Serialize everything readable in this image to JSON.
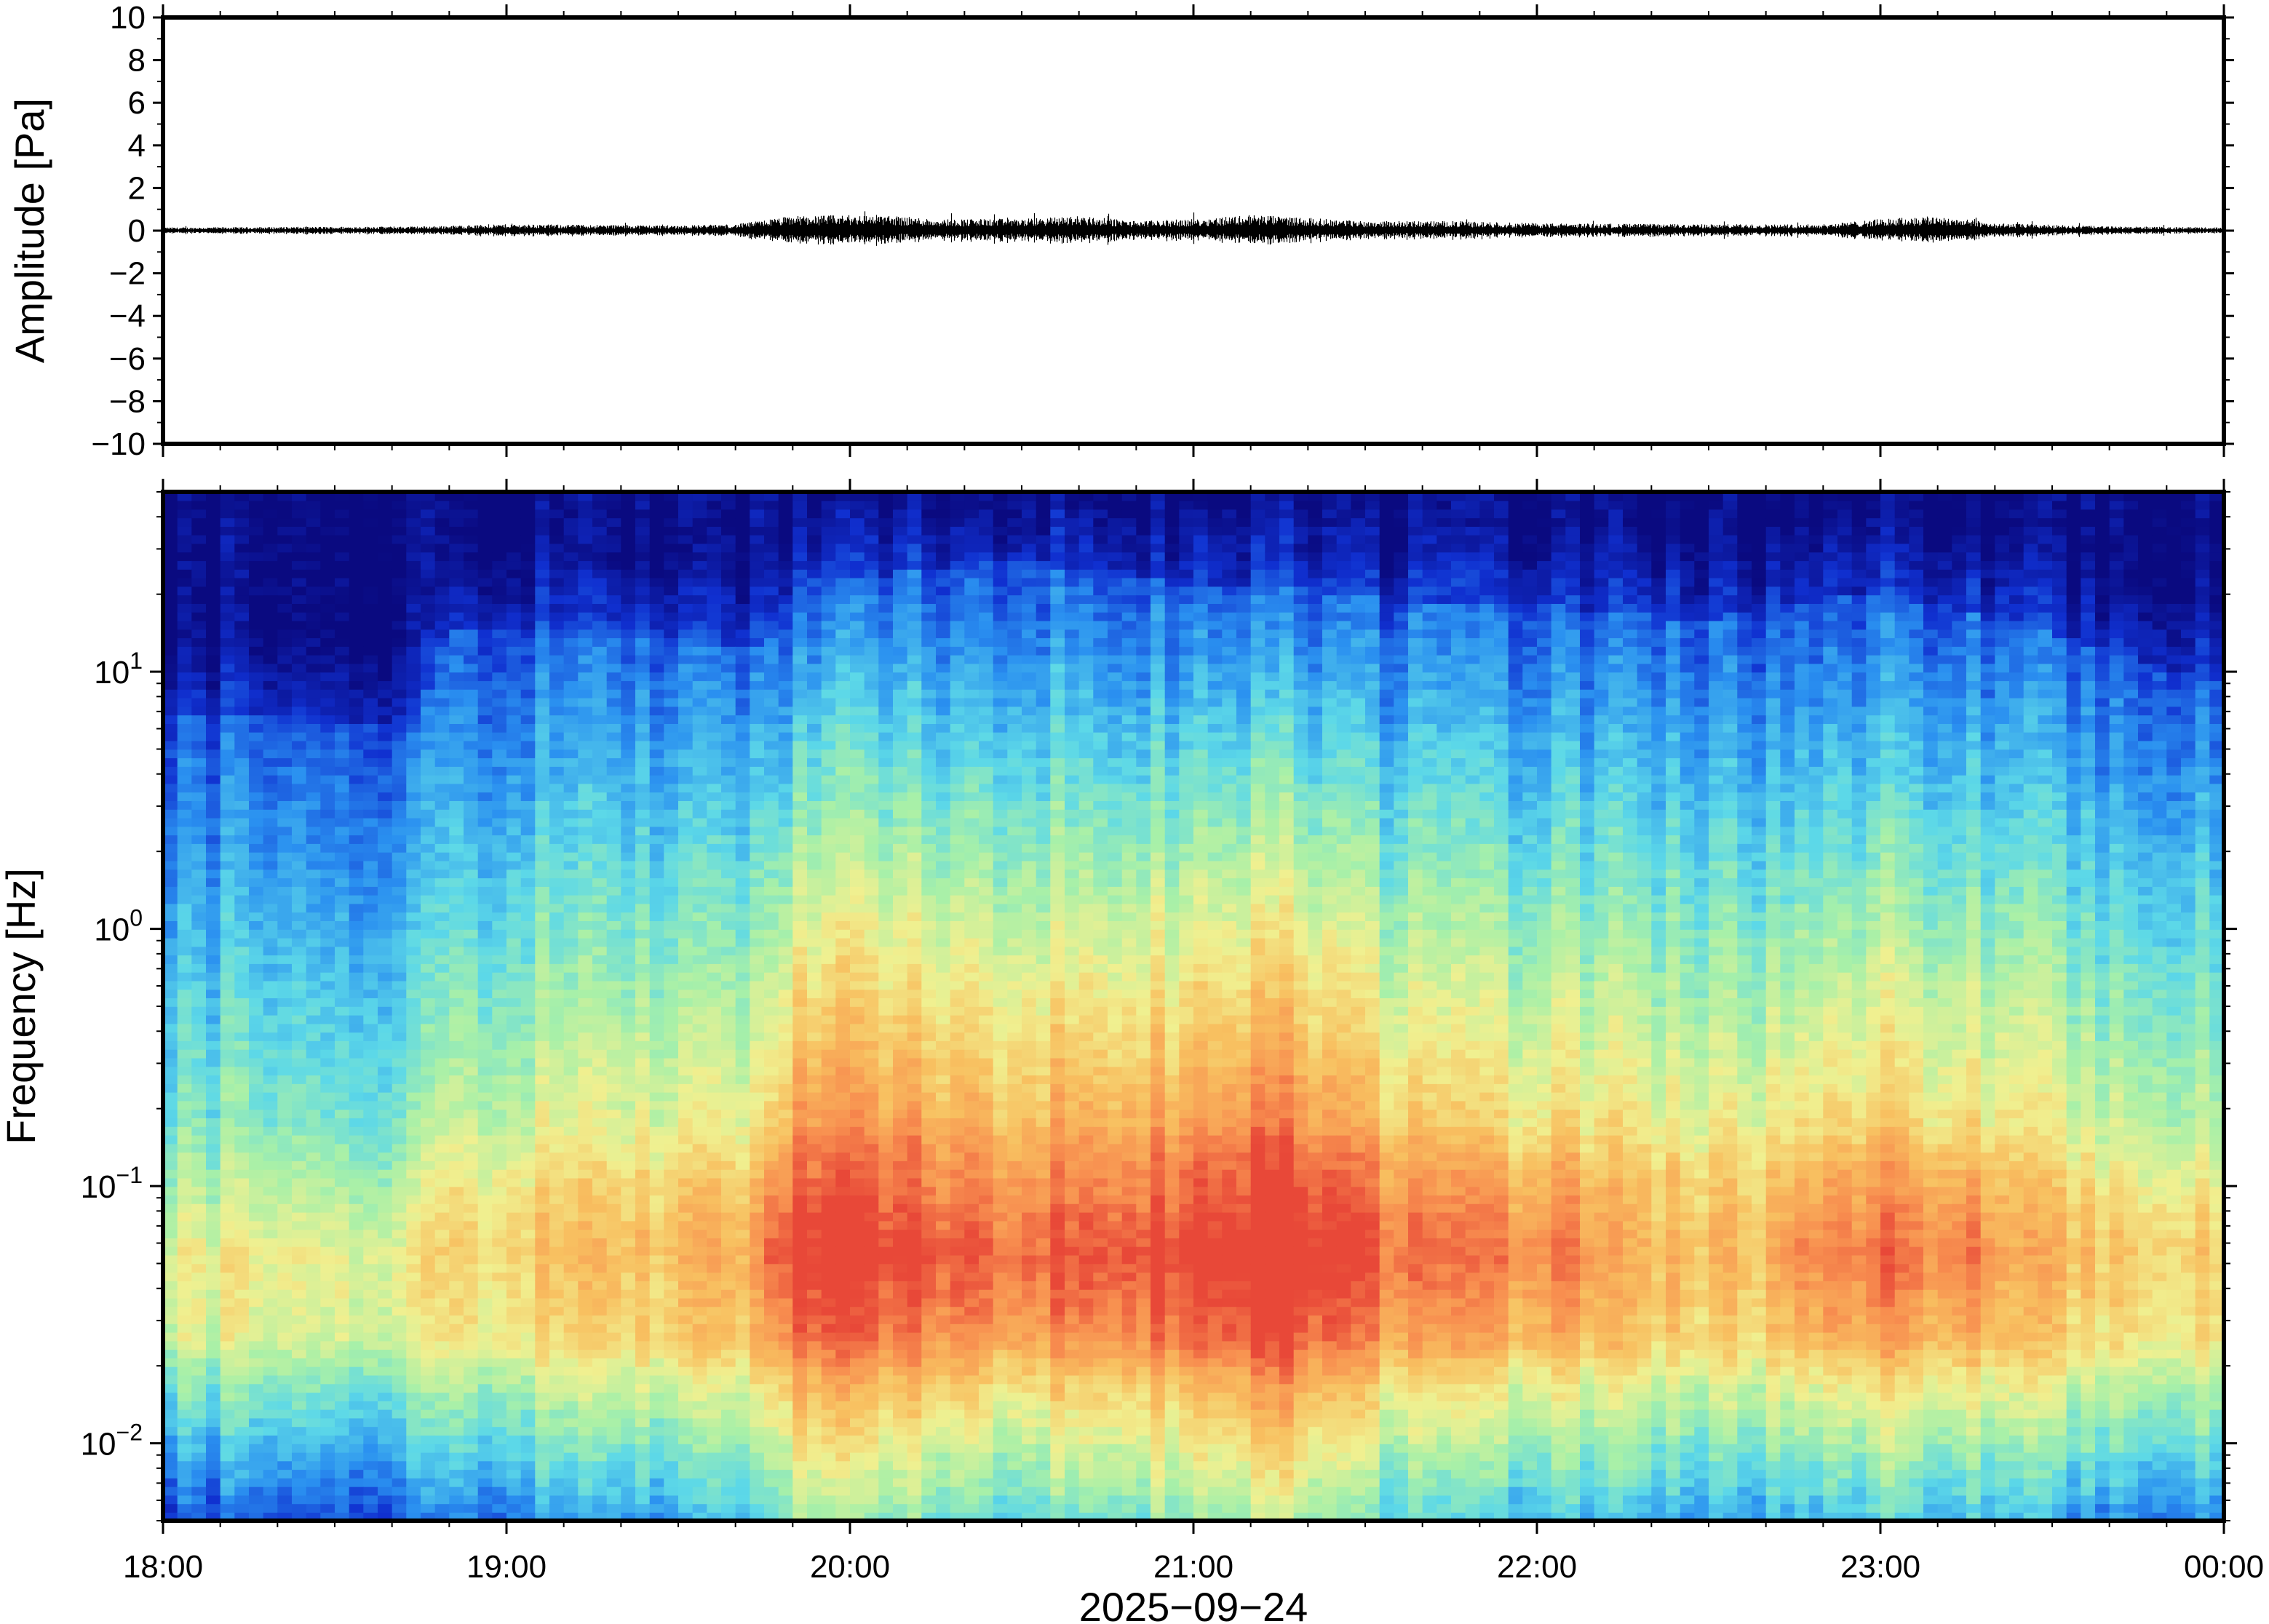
{
  "chart_data": [
    {
      "type": "line",
      "ylabel": "Amplitude [Pa]",
      "ylim": [
        -10,
        10
      ],
      "y_ticks": [
        "10",
        "8",
        "6",
        "4",
        "2",
        "0",
        "−2",
        "−4",
        "−6",
        "−8",
        "−10"
      ],
      "x_range": [
        "18:00",
        "00:00"
      ],
      "series": [
        {
          "type": "waveform",
          "envelope_pa": [
            [
              "18:00",
              0.15
            ],
            [
              "18:45",
              0.2
            ],
            [
              "19:00",
              0.3
            ],
            [
              "19:30",
              0.25
            ],
            [
              "19:40",
              0.3
            ],
            [
              "19:50",
              0.7
            ],
            [
              "20:05",
              0.75
            ],
            [
              "20:15",
              0.55
            ],
            [
              "20:30",
              0.55
            ],
            [
              "20:40",
              0.7
            ],
            [
              "20:50",
              0.45
            ],
            [
              "21:00",
              0.55
            ],
            [
              "21:10",
              0.75
            ],
            [
              "21:30",
              0.45
            ],
            [
              "21:45",
              0.45
            ],
            [
              "22:00",
              0.35
            ],
            [
              "22:30",
              0.3
            ],
            [
              "22:50",
              0.3
            ],
            [
              "23:00",
              0.55
            ],
            [
              "23:10",
              0.7
            ],
            [
              "23:20",
              0.35
            ],
            [
              "23:40",
              0.2
            ],
            [
              "00:00",
              0.15
            ]
          ]
        }
      ],
      "grid": false
    },
    {
      "type": "heatmap",
      "ylabel": "Frequency [Hz]",
      "xlabel": "2025−09−24",
      "y_scale": "log",
      "ylim": [
        0.005,
        50
      ],
      "y_ticks": [
        {
          "base": "10",
          "exp": "1"
        },
        {
          "base": "10",
          "exp": "0"
        },
        {
          "base": "10",
          "exp": "−1"
        },
        {
          "base": "10",
          "exp": "−2"
        }
      ],
      "x_ticks": [
        "18:00",
        "19:00",
        "20:00",
        "21:00",
        "22:00",
        "23:00",
        "00:00"
      ],
      "colormap": "jet",
      "colormap_stops": [
        "#0a0a80",
        "#1030d0",
        "#2a90f0",
        "#5cd8e8",
        "#a8f0a8",
        "#f0f090",
        "#f8c060",
        "#f89050",
        "#e84838"
      ],
      "power_by_time": [
        {
          "time": "18:00",
          "top_hz": 7,
          "peak": 0.55
        },
        {
          "time": "18:45",
          "top_hz": 6,
          "peak": 0.55
        },
        {
          "time": "18:50",
          "top_hz": 15,
          "peak": 0.62
        },
        {
          "time": "19:30",
          "top_hz": 14,
          "peak": 0.66
        },
        {
          "time": "19:45",
          "top_hz": 12,
          "peak": 0.7
        },
        {
          "time": "19:50",
          "top_hz": 22,
          "peak": 0.88
        },
        {
          "time": "20:30",
          "top_hz": 27,
          "peak": 0.78
        },
        {
          "time": "21:00",
          "top_hz": 22,
          "peak": 0.86
        },
        {
          "time": "21:15",
          "top_hz": 22,
          "peak": 0.92
        },
        {
          "time": "21:40",
          "top_hz": 18,
          "peak": 0.72
        },
        {
          "time": "22:00",
          "top_hz": 18,
          "peak": 0.72
        },
        {
          "time": "22:30",
          "top_hz": 16,
          "peak": 0.66
        },
        {
          "time": "23:00",
          "top_hz": 20,
          "peak": 0.75
        },
        {
          "time": "23:20",
          "top_hz": 16,
          "peak": 0.7
        },
        {
          "time": "23:40",
          "top_hz": 12,
          "peak": 0.64
        },
        {
          "time": "00:00",
          "top_hz": 9,
          "peak": 0.62
        }
      ],
      "peak_band_hz": [
        0.03,
        0.1
      ],
      "grid": false
    }
  ]
}
